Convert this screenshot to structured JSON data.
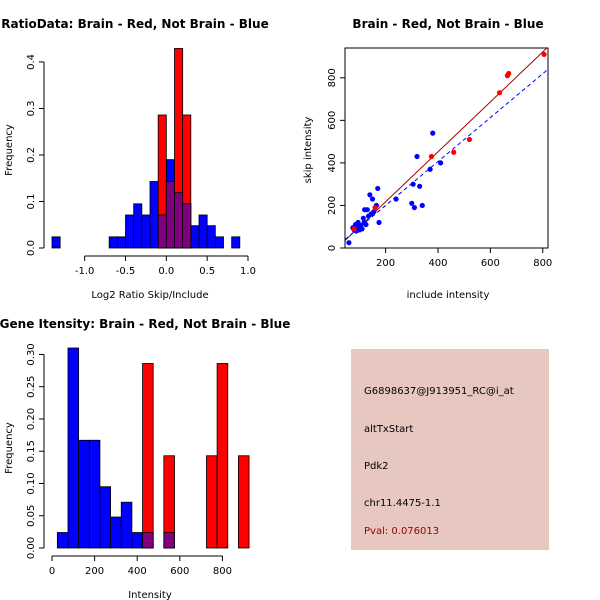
{
  "colors": {
    "red": "#ff0000",
    "blue": "#0000ff",
    "overlap": "#7f007f",
    "fit_red": "#a00000",
    "fit_blue": "#0000ff",
    "info_bg": "#e6c8c0",
    "pval_text": "#a00000"
  },
  "chart_data": [
    {
      "type": "bar",
      "subtype": "overlaid-histogram",
      "title": "RatioData: Brain - Red, Not Brain - Blue",
      "xlabel": "Log2 Ratio Skip/Include",
      "ylabel": "Frequency",
      "xlim": [
        -1.4,
        1.0
      ],
      "ylim": [
        0,
        0.43
      ],
      "xticks": [
        -1.0,
        -0.5,
        0.0,
        0.5,
        1.0
      ],
      "xtick_labels": [
        "-1.0",
        "-0.5",
        "0.0",
        "0.5",
        "1.0"
      ],
      "yticks": [
        0.0,
        0.1,
        0.2,
        0.3,
        0.4
      ],
      "ytick_labels": [
        "0.0",
        "0.1",
        "0.2",
        "0.3",
        "0.4"
      ],
      "bin_width": 0.1,
      "series": [
        {
          "name": "Not Brain",
          "color": "blue",
          "bin_starts": [
            -1.4,
            -0.7,
            -0.6,
            -0.5,
            -0.4,
            -0.3,
            -0.2,
            -0.1,
            0.0,
            0.1,
            0.2,
            0.3,
            0.4,
            0.5,
            0.6,
            0.8
          ],
          "values": [
            0.024,
            0.024,
            0.024,
            0.071,
            0.095,
            0.071,
            0.143,
            0.071,
            0.19,
            0.119,
            0.095,
            0.048,
            0.071,
            0.048,
            0.024,
            0.024
          ]
        },
        {
          "name": "Brain",
          "color": "red",
          "bin_starts": [
            -0.1,
            0.0,
            0.1,
            0.2
          ],
          "values": [
            0.286,
            0.143,
            0.429,
            0.286
          ]
        }
      ]
    },
    {
      "type": "scatter",
      "title": "Brain - Red, Not Brain - Blue",
      "xlabel": "include intensity",
      "ylabel": "skip intensity",
      "xlim": [
        45,
        820
      ],
      "ylim": [
        0,
        940
      ],
      "xticks": [
        200,
        400,
        600,
        800
      ],
      "xtick_labels": [
        "200",
        "400",
        "600",
        "800"
      ],
      "yticks": [
        0,
        200,
        400,
        600,
        800
      ],
      "ytick_labels": [
        "0",
        "200",
        "400",
        "600",
        "800"
      ],
      "series": [
        {
          "name": "Not Brain",
          "color": "blue",
          "x": [
            60,
            75,
            80,
            85,
            88,
            90,
            92,
            95,
            97,
            100,
            105,
            110,
            115,
            118,
            120,
            125,
            130,
            135,
            140,
            145,
            150,
            155,
            165,
            170,
            175,
            240,
            300,
            305,
            310,
            320,
            330,
            340,
            370,
            380,
            410
          ],
          "y": [
            25,
            95,
            85,
            110,
            80,
            100,
            90,
            120,
            95,
            85,
            105,
            90,
            140,
            120,
            180,
            110,
            180,
            150,
            250,
            160,
            230,
            170,
            200,
            280,
            120,
            230,
            210,
            300,
            190,
            430,
            290,
            200,
            370,
            540,
            400
          ]
        },
        {
          "name": "Brain",
          "color": "red",
          "x": [
            80,
            160,
            375,
            460,
            520,
            635,
            665,
            670,
            805
          ],
          "y": [
            90,
            190,
            430,
            450,
            510,
            730,
            810,
            820,
            910
          ]
        }
      ],
      "fit_lines": [
        {
          "name": "Brain fit",
          "color": "fit_red",
          "style": "solid",
          "x": [
            45,
            820
          ],
          "y": [
            35,
            945
          ]
        },
        {
          "name": "Not Brain fit",
          "color": "fit_blue",
          "style": "dashed",
          "x": [
            45,
            820
          ],
          "y": [
            40,
            840
          ]
        }
      ]
    },
    {
      "type": "bar",
      "subtype": "overlaid-histogram",
      "title": "Gene Itensity: Brain - Red, Not Brain - Blue",
      "xlabel": "Intensity",
      "ylabel": "Frequency",
      "xlim": [
        0,
        920
      ],
      "ylim": [
        0,
        0.31
      ],
      "xticks": [
        0,
        200,
        400,
        600,
        800
      ],
      "xtick_labels": [
        "0",
        "200",
        "400",
        "600",
        "800"
      ],
      "yticks": [
        0.0,
        0.05,
        0.1,
        0.15,
        0.2,
        0.25,
        0.3
      ],
      "ytick_labels": [
        "0.00",
        "0.05",
        "0.10",
        "0.15",
        "0.20",
        "0.25",
        "0.30"
      ],
      "bin_width": 50,
      "series": [
        {
          "name": "Not Brain",
          "color": "blue",
          "bin_starts": [
            25,
            75,
            125,
            175,
            225,
            275,
            325,
            375,
            425,
            525
          ],
          "values": [
            0.024,
            0.31,
            0.167,
            0.167,
            0.095,
            0.048,
            0.071,
            0.024,
            0.024,
            0.024
          ]
        },
        {
          "name": "Brain",
          "color": "red",
          "bin_starts": [
            425,
            525,
            725,
            775,
            875
          ],
          "values": [
            0.286,
            0.143,
            0.143,
            0.286,
            0.143
          ]
        }
      ]
    }
  ],
  "info": {
    "probe": "G6898637@J913951_RC@i_at",
    "event": "altTxStart",
    "gene": "Pdk2",
    "location": "chr11.4475-1.1",
    "pval": "Pval: 0.076013"
  }
}
